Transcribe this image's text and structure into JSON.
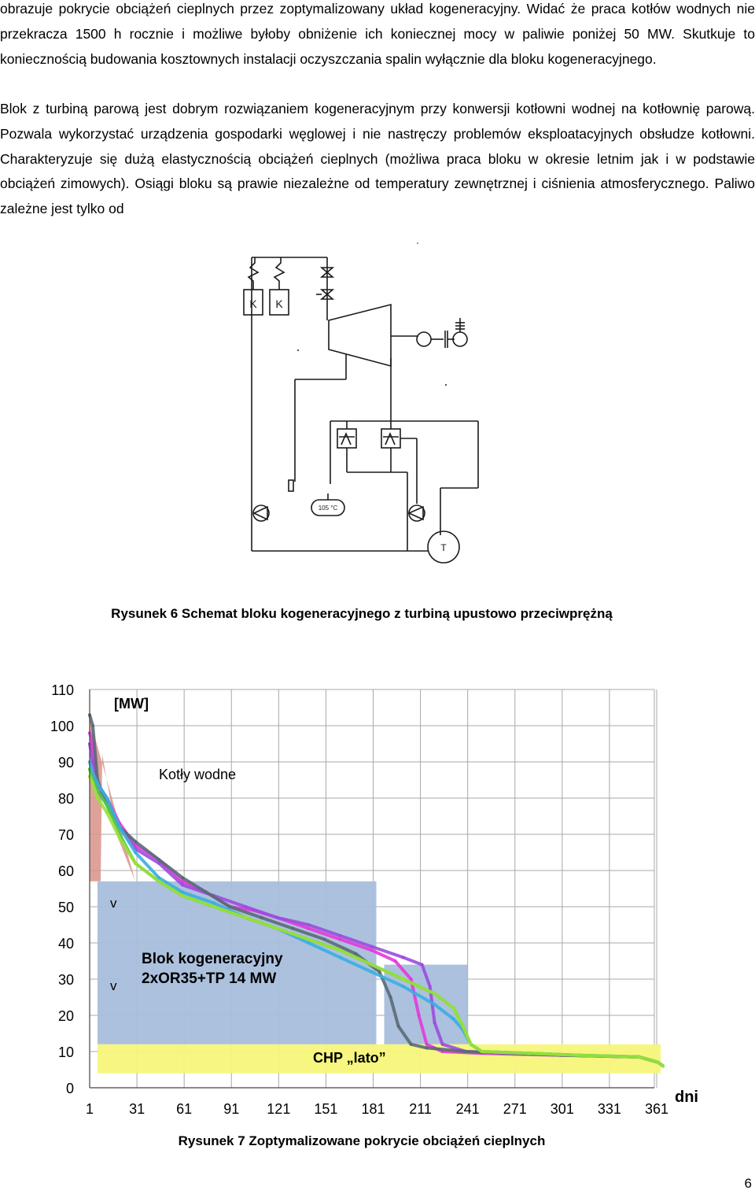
{
  "paragraphs": {
    "p1": "obrazuje pokrycie obciążeń cieplnych przez zoptymalizowany układ kogeneracyjny. Widać że praca kotłów wodnych nie przekracza 1500 h rocznie i możliwe byłoby obniżenie ich koniecznej mocy w paliwie poniżej 50 MW. Skutkuje to koniecznością budowania kosztownych instalacji oczyszczania spalin wyłącznie dla bloku kogeneracyjnego.",
    "p2": "Blok z turbiną parową jest dobrym rozwiązaniem kogeneracyjnym przy konwersji kotłowni wodnej na kotłownię parową. Pozwala wykorzystać urządzenia gospodarki węglowej i nie nastręczy problemów eksploatacyjnych obsłudze kotłowni. Charakteryzuje się dużą elastycznością obciążeń cieplnych (możliwa praca bloku w okresie letnim jak i w podstawie obciążeń zimowych). Osiągi bloku są prawie niezależne od temperatury zewnętrznej i ciśnienia atmosferycznego. Paliwo zależne jest tylko od"
  },
  "figure6": {
    "caption": "Rysunek 6 Schemat bloku kogeneracyjnego z turbiną upustowo przeciwprężną",
    "boiler_label": "K",
    "temp_label": "105 °C",
    "meter_label": "T"
  },
  "figure7": {
    "caption": "Rysunek 7 Zoptymalizowane pokrycie obciążeń cieplnych",
    "unit_label": "[MW]",
    "x_unit_label": "dni",
    "region_labels": {
      "boilers": "Kotły wodne",
      "block_line1": "Blok kogeneracyjny",
      "block_line2": "2xOR35+TP 14 MW",
      "summer": "CHP „lato”",
      "v_mark": "v"
    },
    "colors": {
      "boilers_fill": "#d9928a",
      "block_fill": "#a8bedb",
      "summer_fill": "#f6f57a",
      "series": [
        "#e23bd8",
        "#9b4dde",
        "#5a6a78",
        "#3aaee0",
        "#4fc84a",
        "#9ae03a"
      ]
    }
  },
  "chart_data": {
    "type": "line",
    "title": "",
    "xlabel": "dni",
    "ylabel": "[MW]",
    "xlim": [
      1,
      365
    ],
    "ylim": [
      0,
      110
    ],
    "x_ticks": [
      1,
      31,
      61,
      91,
      121,
      151,
      181,
      211,
      241,
      271,
      301,
      331,
      361
    ],
    "y_ticks": [
      0,
      10,
      20,
      30,
      40,
      50,
      60,
      70,
      80,
      90,
      100,
      110
    ],
    "grid": true,
    "series": [
      {
        "values": [
          [
            1,
            98
          ],
          [
            3,
            95
          ],
          [
            6,
            84
          ],
          [
            12,
            80
          ],
          [
            20,
            73
          ],
          [
            30,
            67
          ],
          [
            45,
            63
          ],
          [
            60,
            57
          ],
          [
            75,
            54
          ],
          [
            90,
            50
          ],
          [
            105,
            49
          ],
          [
            120,
            47
          ],
          [
            140,
            44
          ],
          [
            160,
            41
          ],
          [
            180,
            38
          ],
          [
            195,
            35
          ],
          [
            205,
            30
          ],
          [
            210,
            20
          ],
          [
            215,
            12
          ],
          [
            225,
            10
          ],
          [
            250,
            9.5
          ],
          [
            300,
            9
          ],
          [
            350,
            8.5
          ],
          [
            362,
            7
          ],
          [
            365,
            6
          ]
        ]
      },
      {
        "values": [
          [
            1,
            95
          ],
          [
            3,
            90
          ],
          [
            6,
            82
          ],
          [
            12,
            79
          ],
          [
            20,
            72
          ],
          [
            30,
            66
          ],
          [
            45,
            62
          ],
          [
            60,
            56
          ],
          [
            80,
            53
          ],
          [
            100,
            50
          ],
          [
            120,
            47
          ],
          [
            140,
            45
          ],
          [
            160,
            42
          ],
          [
            180,
            39
          ],
          [
            200,
            36
          ],
          [
            212,
            34
          ],
          [
            217,
            28
          ],
          [
            220,
            18
          ],
          [
            225,
            12
          ],
          [
            240,
            10
          ],
          [
            270,
            9.5
          ],
          [
            300,
            9
          ],
          [
            350,
            8.5
          ],
          [
            362,
            7
          ],
          [
            365,
            6
          ]
        ]
      },
      {
        "values": [
          [
            1,
            103
          ],
          [
            3,
            100
          ],
          [
            6,
            85
          ],
          [
            12,
            78
          ],
          [
            20,
            72
          ],
          [
            30,
            68
          ],
          [
            45,
            63
          ],
          [
            60,
            58
          ],
          [
            75,
            54
          ],
          [
            90,
            50
          ],
          [
            110,
            47
          ],
          [
            130,
            44
          ],
          [
            150,
            41
          ],
          [
            170,
            37
          ],
          [
            185,
            32
          ],
          [
            192,
            25
          ],
          [
            197,
            17
          ],
          [
            205,
            12
          ],
          [
            215,
            11
          ],
          [
            240,
            10
          ],
          [
            270,
            9.5
          ],
          [
            300,
            9
          ],
          [
            350,
            8.5
          ],
          [
            362,
            7
          ],
          [
            365,
            6
          ]
        ]
      },
      {
        "values": [
          [
            1,
            90
          ],
          [
            3,
            87
          ],
          [
            6,
            84
          ],
          [
            12,
            80
          ],
          [
            20,
            72
          ],
          [
            30,
            65
          ],
          [
            45,
            58
          ],
          [
            60,
            54
          ],
          [
            80,
            51
          ],
          [
            100,
            47
          ],
          [
            120,
            44
          ],
          [
            140,
            40
          ],
          [
            160,
            36
          ],
          [
            180,
            32
          ],
          [
            200,
            28
          ],
          [
            220,
            23
          ],
          [
            232,
            19
          ],
          [
            238,
            16
          ],
          [
            243,
            12
          ],
          [
            250,
            10
          ],
          [
            280,
            9.5
          ],
          [
            310,
            9
          ],
          [
            350,
            8.5
          ],
          [
            362,
            7
          ],
          [
            365,
            6
          ]
        ]
      },
      {
        "values": [
          [
            1,
            88
          ],
          [
            3,
            85
          ],
          [
            6,
            82
          ],
          [
            12,
            78
          ],
          [
            20,
            70
          ],
          [
            30,
            62
          ],
          [
            45,
            57
          ],
          [
            60,
            53
          ],
          [
            80,
            50
          ],
          [
            100,
            47
          ],
          [
            120,
            44
          ],
          [
            140,
            41
          ],
          [
            160,
            38
          ],
          [
            180,
            34
          ],
          [
            200,
            30
          ],
          [
            220,
            26
          ],
          [
            232,
            22
          ],
          [
            238,
            17
          ],
          [
            243,
            12
          ],
          [
            250,
            10
          ],
          [
            280,
            9.5
          ],
          [
            310,
            9
          ],
          [
            350,
            8.5
          ],
          [
            362,
            7
          ],
          [
            365,
            6
          ]
        ]
      },
      {
        "values": [
          [
            1,
            86
          ],
          [
            3,
            84
          ],
          [
            6,
            80
          ],
          [
            12,
            76
          ],
          [
            20,
            69
          ],
          [
            30,
            62
          ],
          [
            45,
            57
          ],
          [
            60,
            53
          ],
          [
            80,
            50
          ],
          [
            100,
            47
          ],
          [
            120,
            44
          ],
          [
            140,
            41
          ],
          [
            160,
            38
          ],
          [
            180,
            34
          ],
          [
            200,
            30
          ],
          [
            220,
            26
          ],
          [
            232,
            22
          ],
          [
            238,
            17
          ],
          [
            243,
            12
          ],
          [
            250,
            10
          ],
          [
            280,
            9.5
          ],
          [
            310,
            9
          ],
          [
            350,
            8.5
          ],
          [
            362,
            7
          ],
          [
            365,
            6
          ]
        ]
      }
    ],
    "regions": [
      {
        "name": "Kotły wodne",
        "polygon": [
          [
            1,
            102
          ],
          [
            1,
            57
          ],
          [
            8,
            57
          ],
          [
            9,
            92
          ],
          [
            18,
            70
          ],
          [
            30,
            57
          ]
        ]
      },
      {
        "name": "Blok kogeneracyjny 2xOR35+TP 14 MW",
        "steps": [
          [
            1,
            183,
            57
          ],
          [
            183,
            241,
            34
          ],
          [
            1,
            241,
            12
          ]
        ]
      },
      {
        "name": "CHP „lato”",
        "range": [
          1,
          365
        ],
        "y": [
          4,
          12
        ]
      }
    ]
  },
  "page": {
    "number": "6"
  }
}
